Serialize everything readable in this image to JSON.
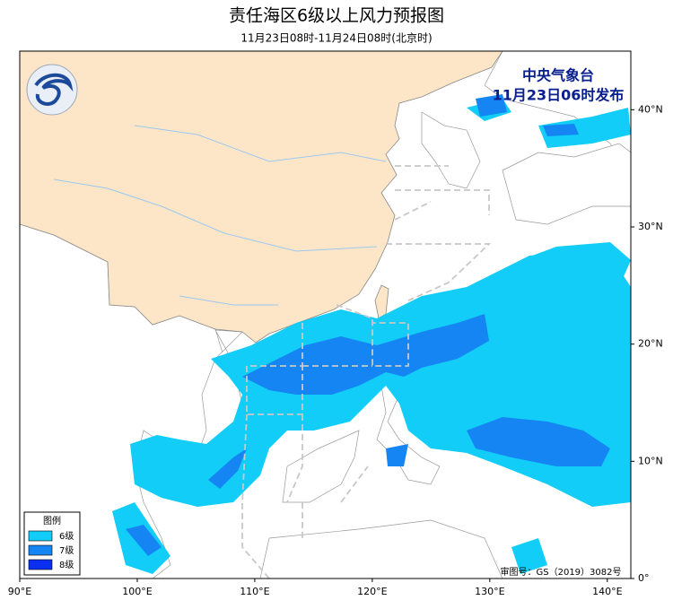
{
  "header": {
    "title": "责任海区6级以上风力预报图",
    "subtitle": "11月23日08时-11月24日08时(北京时)"
  },
  "issuer": {
    "agency": "中央气象台",
    "time": "11月23日06时发布"
  },
  "legend": {
    "title": "图例",
    "items": [
      {
        "label": "6级",
        "color": "#12cdf7"
      },
      {
        "label": "7级",
        "color": "#1485f2"
      },
      {
        "label": "8级",
        "color": "#0a2ff0"
      }
    ]
  },
  "map": {
    "xlim": [
      90,
      142
    ],
    "ylim": [
      0,
      45
    ],
    "xticks": [
      {
        "value": 90,
        "label": "90°E"
      },
      {
        "value": 100,
        "label": "100°E"
      },
      {
        "value": 110,
        "label": "110°E"
      },
      {
        "value": 120,
        "label": "120°E"
      },
      {
        "value": 130,
        "label": "130°E"
      },
      {
        "value": 140,
        "label": "140°E"
      }
    ],
    "yticks": [
      {
        "value": 0,
        "label": "0°"
      },
      {
        "value": 10,
        "label": "10°N"
      },
      {
        "value": 20,
        "label": "20°N"
      },
      {
        "value": 30,
        "label": "30°N"
      },
      {
        "value": 40,
        "label": "40°N"
      }
    ]
  },
  "footer": {
    "approval": "审图号：GS（2019）3082号"
  }
}
